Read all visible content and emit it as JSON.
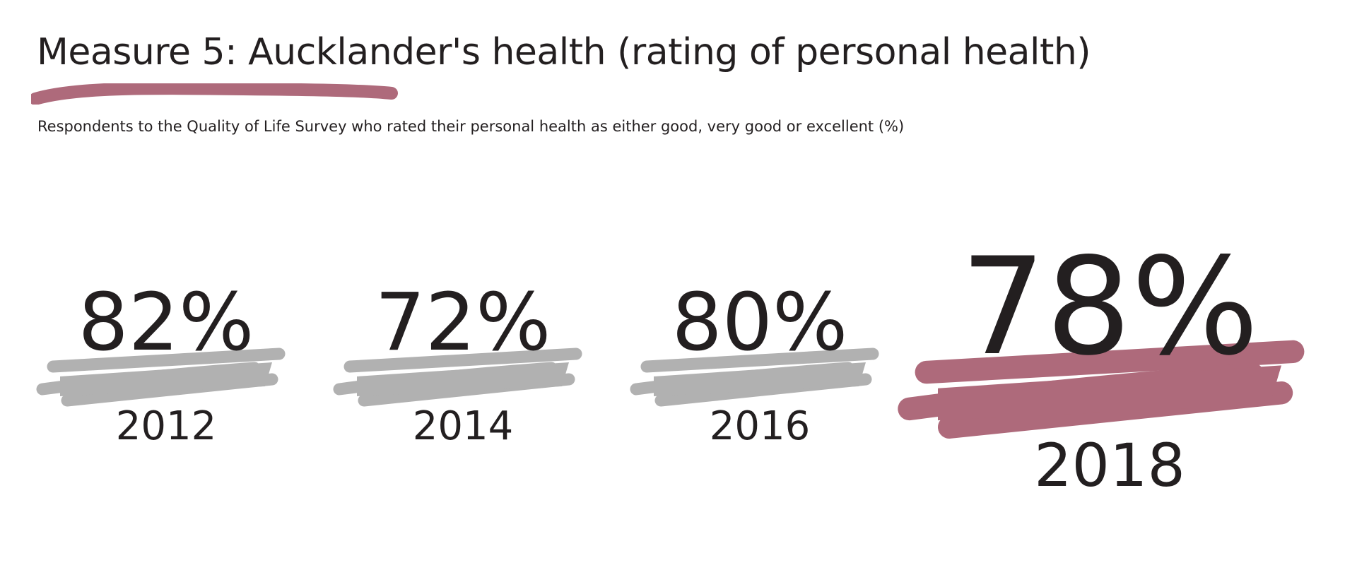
{
  "title": "Measure 5: Aucklander's health (rating of personal health)",
  "subtitle": "Respondents to the Quality of Life Survey who rated their personal health as either good, very good or excellent (%)",
  "colors": {
    "text": "#231f20",
    "accent": "#ae6a7b",
    "muted": "#b1b1b1"
  },
  "chart_data": {
    "type": "table",
    "unit": "%",
    "categories": [
      "2012",
      "2014",
      "2016",
      "2018"
    ],
    "values": [
      82,
      72,
      80,
      78
    ],
    "value_labels": [
      "82%",
      "72%",
      "80%",
      "78%"
    ],
    "highlight": "2018"
  }
}
